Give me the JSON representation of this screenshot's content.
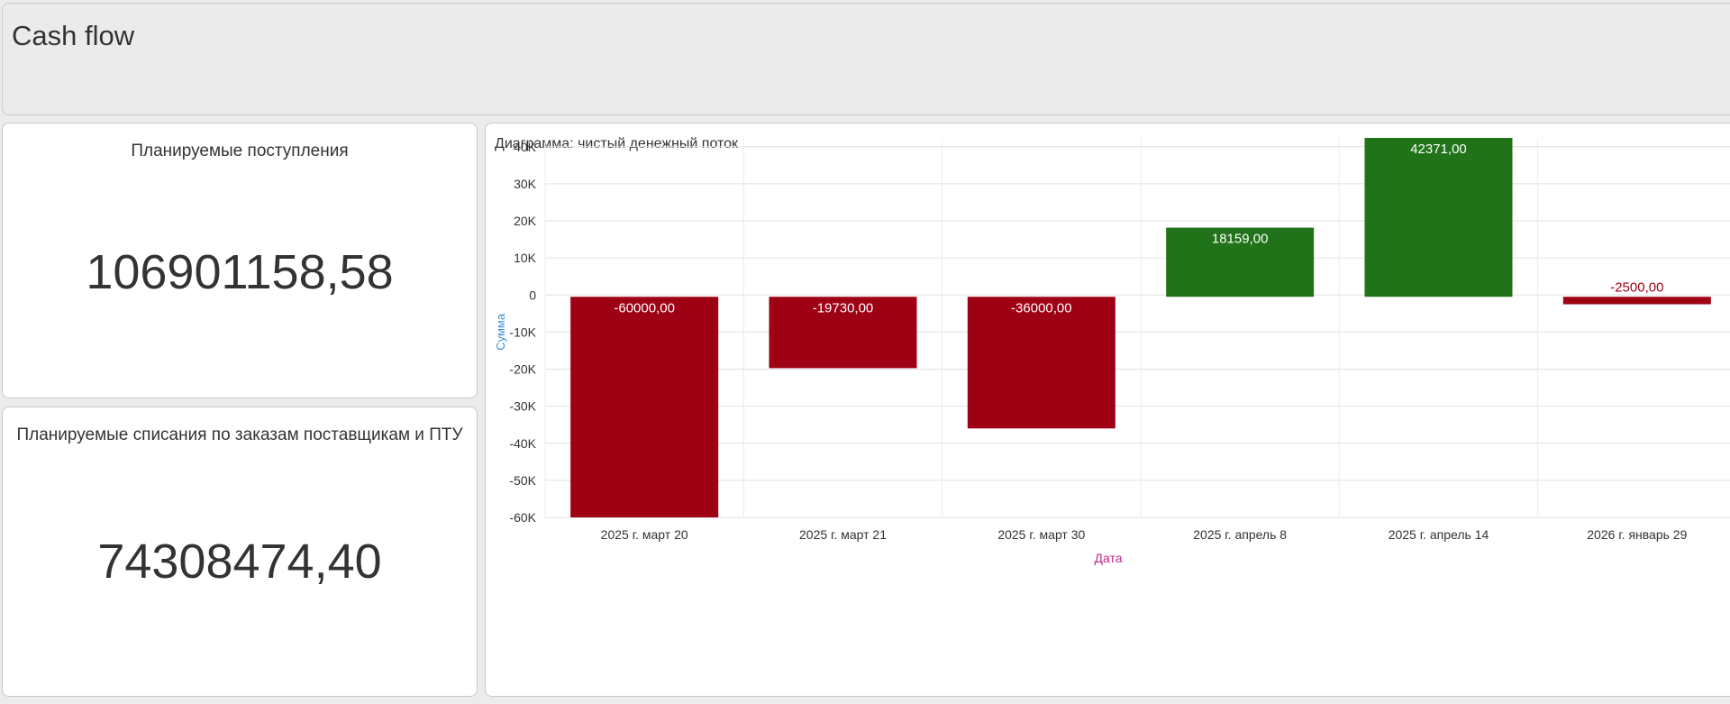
{
  "header": {
    "title": "Cash flow"
  },
  "kpis": [
    {
      "label": "Планируемые поступления",
      "value": "106901158,58"
    },
    {
      "label": "Планируемые списания по заказам поставщикам и ПТУ",
      "value": "74308474,40"
    }
  ],
  "chart_data": {
    "type": "bar",
    "title": "Диаграмма: чистый денежный поток",
    "xlabel": "Дата",
    "ylabel": "Сумма",
    "categories": [
      "2025 г. март 20",
      "2025 г. март 21",
      "2025 г. март 30",
      "2025 г. апрель 8",
      "2025 г. апрель 14",
      "2026 г. январь 29"
    ],
    "values": [
      -60000,
      -19730,
      -36000,
      18159,
      42371,
      -2500
    ],
    "value_labels": [
      "-60000,00",
      "-19730,00",
      "-36000,00",
      "18159,00",
      "42371,00",
      "-2500,00"
    ],
    "ylim": [
      -60000,
      42371
    ],
    "yticks": [
      40000,
      30000,
      20000,
      10000,
      0,
      -10000,
      -20000,
      -30000,
      -40000,
      -50000,
      -60000
    ],
    "ytick_labels": [
      "40K",
      "30K",
      "20K",
      "10K",
      "0",
      "-10K",
      "-20K",
      "-30K",
      "-40K",
      "-50K",
      "-60K"
    ],
    "grid": true,
    "colors": {
      "positive": "#21731a",
      "negative": "#9e0014",
      "xlabel": "#c0268f",
      "ylabel": "#3a8fd6"
    }
  }
}
